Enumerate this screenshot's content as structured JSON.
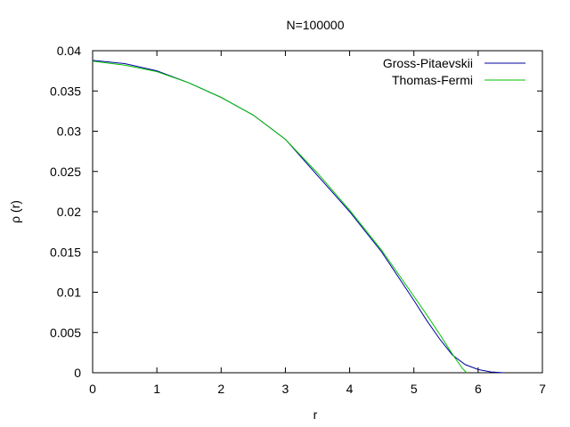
{
  "chart_data": {
    "type": "line",
    "title": "N=100000",
    "xlabel": "r",
    "ylabel": "ρ (r)",
    "xlim": [
      0,
      7
    ],
    "ylim": [
      0,
      0.04
    ],
    "x_ticks": [
      0,
      1,
      2,
      3,
      4,
      5,
      6,
      7
    ],
    "x_tick_labels": [
      "0",
      "1",
      "2",
      "3",
      "4",
      "5",
      "6",
      "7"
    ],
    "y_ticks": [
      0,
      0.005,
      0.01,
      0.015,
      0.02,
      0.025,
      0.03,
      0.035,
      0.04
    ],
    "y_tick_labels": [
      "0",
      "0.005",
      "0.01",
      "0.015",
      "0.02",
      "0.025",
      "0.03",
      "0.035",
      "0.04"
    ],
    "grid": false,
    "legend_position": "top-right",
    "series": [
      {
        "name": "Gross-Pitaevskii",
        "color": "#0000a0",
        "x": [
          0,
          0.5,
          1,
          1.5,
          2,
          2.5,
          3,
          3.5,
          4,
          4.5,
          5,
          5.2,
          5.4,
          5.6,
          5.8,
          6.0,
          6.2,
          6.4
        ],
        "y": [
          0.0388,
          0.0384,
          0.0375,
          0.036,
          0.0342,
          0.032,
          0.029,
          0.0245,
          0.02,
          0.015,
          0.009,
          0.0065,
          0.0042,
          0.0022,
          0.001,
          0.0004,
          0.0001,
          0.0
        ]
      },
      {
        "name": "Thomas-Fermi",
        "color": "#00c000",
        "x": [
          0,
          0.5,
          1,
          1.5,
          2,
          2.5,
          3,
          3.5,
          4,
          4.5,
          5,
          5.2,
          5.4,
          5.6,
          5.75,
          5.82
        ],
        "y": [
          0.0387,
          0.0382,
          0.0374,
          0.036,
          0.0342,
          0.032,
          0.029,
          0.0248,
          0.0202,
          0.0152,
          0.0095,
          0.0072,
          0.0048,
          0.0023,
          0.0006,
          0.0
        ]
      }
    ]
  }
}
